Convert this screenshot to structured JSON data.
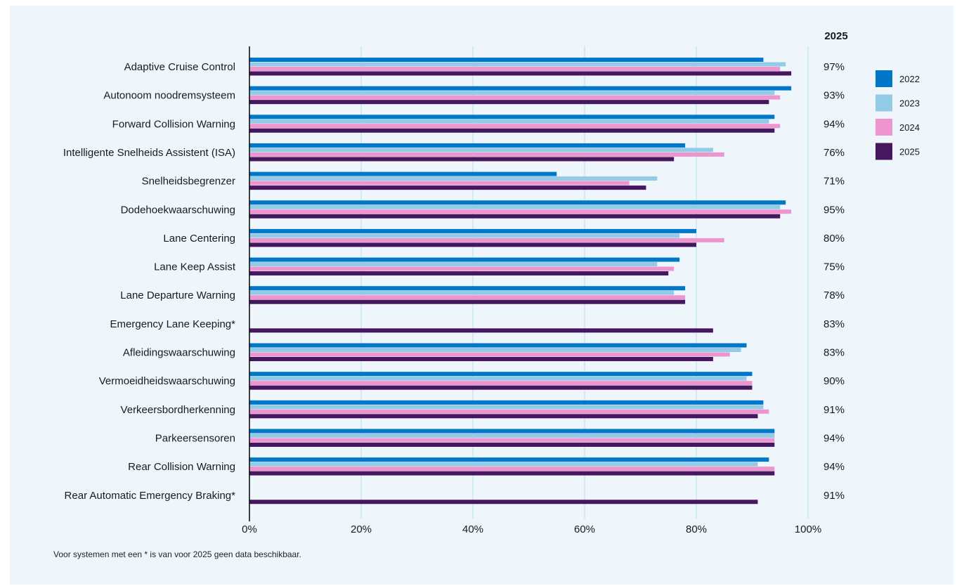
{
  "chart_data": {
    "type": "bar",
    "orientation": "horizontal",
    "value_column_header": "2025",
    "categories": [
      "Adaptive Cruise Control",
      "Autonoom noodremsysteem",
      "Forward Collision Warning",
      "Intelligente Snelheids Assistent (ISA)",
      "Snelheidsbegrenzer",
      "Dodehoekwaarschuwing",
      "Lane Centering",
      "Lane Keep Assist",
      "Lane Departure Warning",
      "Emergency Lane Keeping*",
      "Afleidingswaarschuwing",
      "Vermoeidheidswaarschuwing",
      "Verkeersbordherkenning",
      "Parkeersensoren",
      "Rear Collision Warning",
      "Rear Automatic Emergency Braking*"
    ],
    "series": [
      {
        "name": "2022",
        "color": "#0077c8",
        "values": [
          92,
          97,
          94,
          78,
          55,
          96,
          80,
          77,
          78,
          null,
          89,
          90,
          92,
          94,
          93,
          null
        ]
      },
      {
        "name": "2023",
        "color": "#93cbe6",
        "values": [
          96,
          94,
          93,
          83,
          73,
          95,
          77,
          73,
          76,
          null,
          88,
          89,
          92,
          94,
          91,
          null
        ]
      },
      {
        "name": "2024",
        "color": "#ee95d0",
        "values": [
          95,
          95,
          95,
          85,
          68,
          97,
          85,
          76,
          78,
          null,
          86,
          90,
          93,
          94,
          94,
          null
        ]
      },
      {
        "name": "2025",
        "color": "#45175e",
        "values": [
          97,
          93,
          94,
          76,
          71,
          95,
          80,
          75,
          78,
          83,
          83,
          90,
          91,
          94,
          94,
          91
        ]
      }
    ],
    "value_labels": [
      "97%",
      "93%",
      "94%",
      "76%",
      "71%",
      "95%",
      "80%",
      "75%",
      "78%",
      "83%",
      "83%",
      "90%",
      "91%",
      "94%",
      "94%",
      "91%"
    ],
    "x_ticks": [
      "0%",
      "20%",
      "40%",
      "60%",
      "80%",
      "100%"
    ],
    "xlim": [
      0,
      100
    ],
    "grid": true,
    "legend_position": "right"
  },
  "footnote": "Voor systemen met een * is van voor 2025 geen data beschikbaar."
}
